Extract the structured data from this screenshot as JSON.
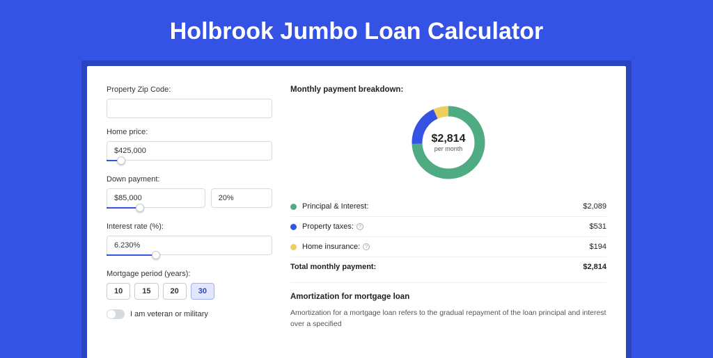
{
  "page": {
    "title": "Holbrook Jumbo Loan Calculator",
    "bg_color": "#3453e4",
    "card_shadow_color": "#2b45c1"
  },
  "form": {
    "zip": {
      "label": "Property Zip Code:",
      "value": ""
    },
    "home_price": {
      "label": "Home price:",
      "value": "$425,000",
      "slider_pct": 9
    },
    "down_payment": {
      "label": "Down payment:",
      "amount": "$85,000",
      "pct": "20%",
      "slider_pct": 20
    },
    "interest": {
      "label": "Interest rate (%):",
      "value": "6.230%",
      "slider_pct": 30
    },
    "period": {
      "label": "Mortgage period (years):",
      "options": [
        "10",
        "15",
        "20",
        "30"
      ],
      "active_index": 3
    },
    "veteran": {
      "label": "I am veteran or military",
      "on": false
    }
  },
  "breakdown": {
    "title": "Monthly payment breakdown:",
    "donut": {
      "amount": "$2,814",
      "sub": "per month",
      "series": [
        {
          "name": "Principal & Interest",
          "value": 2089,
          "color": "#4eab82"
        },
        {
          "name": "Property taxes",
          "value": 531,
          "color": "#3453e4"
        },
        {
          "name": "Home insurance",
          "value": 194,
          "color": "#efcf5c"
        }
      ],
      "stroke_width": 15
    },
    "legend": [
      {
        "label": "Principal & Interest:",
        "value": "$2,089",
        "color": "#4eab82",
        "info": false
      },
      {
        "label": "Property taxes:",
        "value": "$531",
        "color": "#3453e4",
        "info": true
      },
      {
        "label": "Home insurance:",
        "value": "$194",
        "color": "#efcf5c",
        "info": true
      }
    ],
    "total": {
      "label": "Total monthly payment:",
      "value": "$2,814"
    }
  },
  "amort": {
    "title": "Amortization for mortgage loan",
    "text": "Amortization for a mortgage loan refers to the gradual repayment of the loan principal and interest over a specified"
  }
}
